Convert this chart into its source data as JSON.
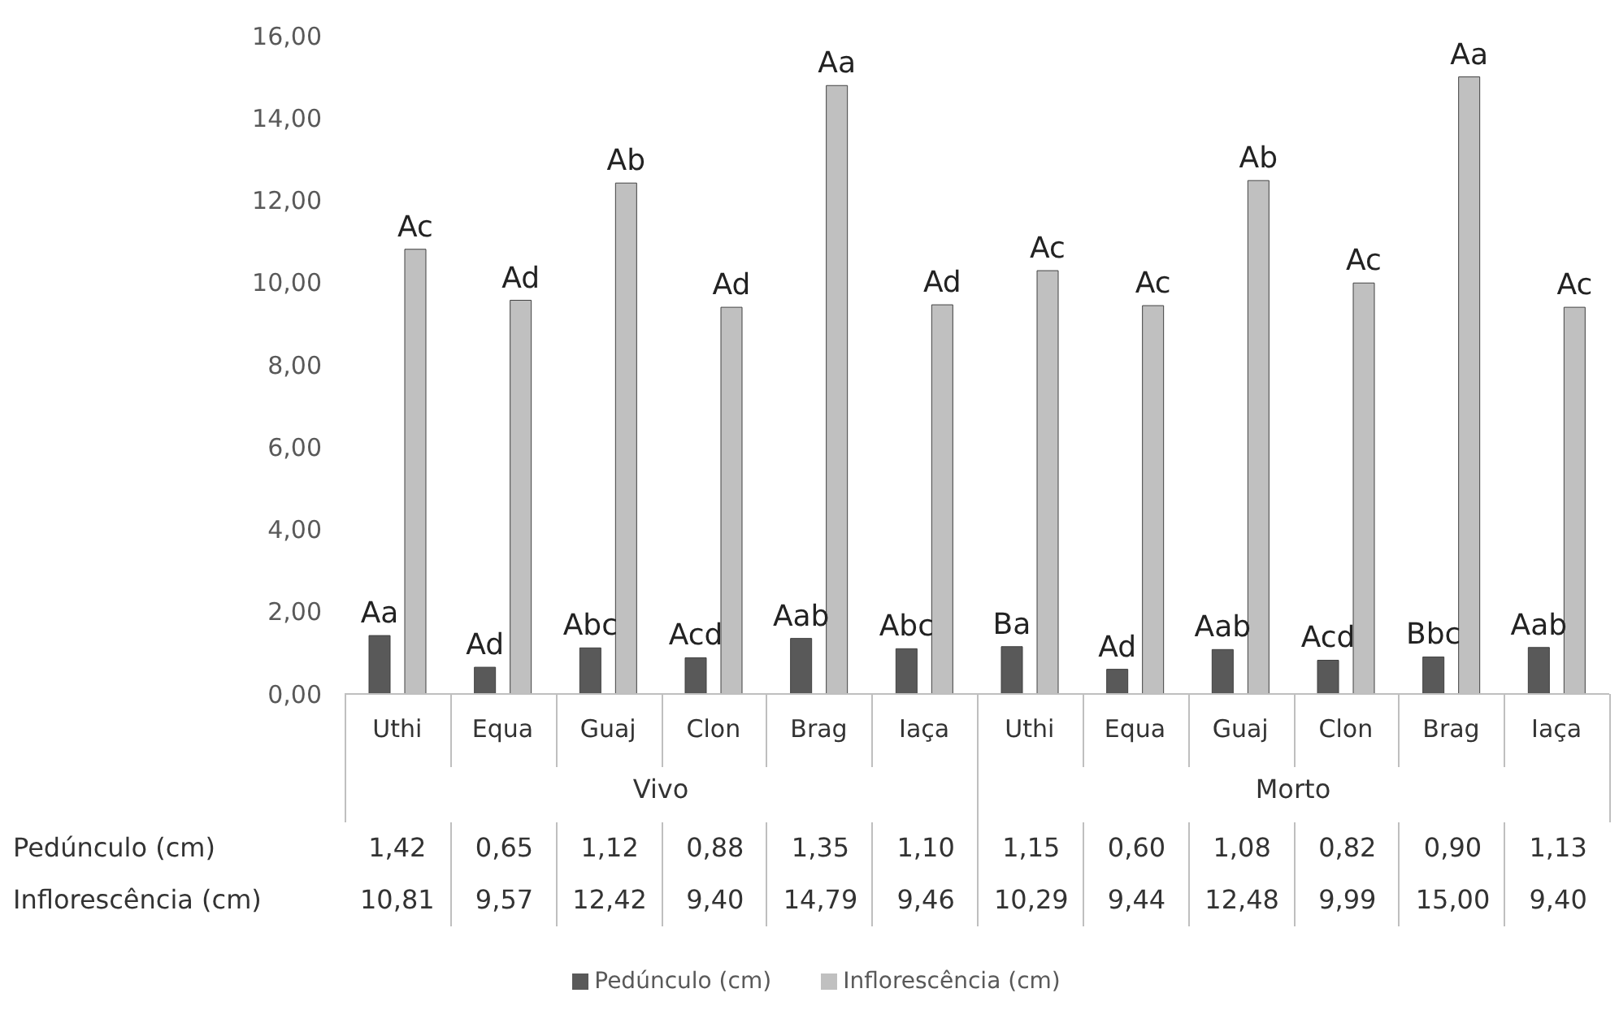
{
  "chart_data": {
    "type": "bar",
    "categories": [
      "Uthi",
      "Equa",
      "Guaj",
      "Clon",
      "Brag",
      "Iaça",
      "Uthi",
      "Equa",
      "Guaj",
      "Clon",
      "Brag",
      "Iaça"
    ],
    "series": [
      {
        "name": "Pedúnculo (cm)",
        "color": "#595959",
        "values": [
          1.42,
          0.65,
          1.12,
          0.88,
          1.35,
          1.1,
          1.15,
          0.6,
          1.08,
          0.82,
          0.9,
          1.13
        ],
        "value_labels": [
          "1,42",
          "0,65",
          "1,12",
          "0,88",
          "1,35",
          "1,10",
          "1,15",
          "0,60",
          "1,08",
          "0,82",
          "0,90",
          "1,13"
        ]
      },
      {
        "name": "Inflorescência (cm)",
        "color": "#c0c0c0",
        "values": [
          10.81,
          9.57,
          12.42,
          9.4,
          14.79,
          9.46,
          10.29,
          9.44,
          12.48,
          9.99,
          15.0,
          9.4
        ],
        "value_labels": [
          "10,81",
          "9,57",
          "12,42",
          "9,40",
          "14,79",
          "9,46",
          "10,29",
          "9,44",
          "12,48",
          "9,99",
          "15,00",
          "9,40"
        ]
      }
    ],
    "annotations": [
      "Vivo",
      "Morto",
      "Aa",
      "Ad",
      "Abc",
      "Acd",
      "Aab",
      "Abc",
      "Ba",
      "Ad",
      "Aab",
      "Acd",
      "Bbc",
      "Aab",
      "Ac",
      "Ad",
      "Ab",
      "Ad",
      "Aa",
      "Ad",
      "Ac",
      "Ac",
      "Ab",
      "Ac",
      "Aa",
      "Ac"
    ],
    "ylim": [
      0,
      16
    ],
    "yticks": [
      {
        "value": 0,
        "label": "0,00"
      },
      {
        "value": 2,
        "label": "2,00"
      },
      {
        "value": 4,
        "label": "4,00"
      },
      {
        "value": 6,
        "label": "6,00"
      },
      {
        "value": 8,
        "label": "8,00"
      },
      {
        "value": 10,
        "label": "10,00"
      },
      {
        "value": 12,
        "label": "12,00"
      },
      {
        "value": 14,
        "label": "14,00"
      },
      {
        "value": 16,
        "label": "16,00"
      }
    ],
    "legend": "bottom"
  }
}
